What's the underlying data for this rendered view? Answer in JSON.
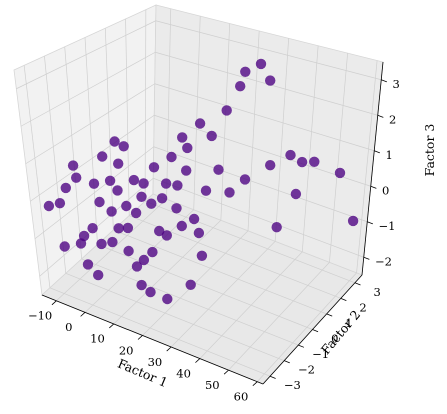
{
  "chart_data": {
    "type": "scatter",
    "projection": "3d",
    "title": "",
    "xlabel": "Factor 1",
    "ylabel": "Factor 2",
    "zlabel": "Factor 3",
    "xlim": [
      -15,
      62
    ],
    "ylim": [
      -3.5,
      3.5
    ],
    "zlim": [
      -2.5,
      3.5
    ],
    "xticks": [
      -10,
      0,
      10,
      20,
      30,
      40,
      50,
      60
    ],
    "yticks": [
      -3,
      -2,
      -1,
      0,
      1,
      2,
      3
    ],
    "zticks": [
      -2,
      -1,
      0,
      1,
      2,
      3
    ],
    "grid": true,
    "point_color": "#4b0082",
    "point_alpha": 0.78,
    "series": [
      {
        "points": [
          [
            -12.0,
            -3.0,
            -0.2
          ],
          [
            -8.0,
            -3.0,
            0.0
          ],
          [
            -6.0,
            -3.3,
            -1.0
          ],
          [
            -4.0,
            -3.2,
            0.6
          ],
          [
            -2.0,
            -3.0,
            1.2
          ],
          [
            0.0,
            -3.2,
            1.0
          ],
          [
            -2.0,
            -3.0,
            -0.9
          ],
          [
            0.0,
            -3.1,
            -0.6
          ],
          [
            2.0,
            -2.9,
            -0.4
          ],
          [
            2.0,
            -2.6,
            0.7
          ],
          [
            4.0,
            -2.7,
            0.3
          ],
          [
            6.0,
            -2.4,
            0.0
          ],
          [
            6.0,
            -2.5,
            -0.8
          ],
          [
            8.0,
            -2.3,
            0.6
          ],
          [
            8.0,
            -2.4,
            -0.4
          ],
          [
            10.0,
            -2.2,
            0.2
          ],
          [
            10.0,
            -2.2,
            -0.4
          ],
          [
            12.0,
            -2.0,
            0.0
          ],
          [
            4.0,
            -2.8,
            -0.8
          ],
          [
            5.0,
            -2.5,
            1.5
          ],
          [
            7.0,
            -2.0,
            1.2
          ],
          [
            9.0,
            -2.1,
            -1.1
          ],
          [
            11.0,
            -2.0,
            -1.5
          ],
          [
            13.0,
            -1.9,
            -1.3
          ],
          [
            3.0,
            -3.0,
            -1.6
          ],
          [
            1.0,
            -3.2,
            -1.3
          ],
          [
            15.0,
            -1.6,
            0.2
          ],
          [
            14.0,
            -1.8,
            0.8
          ],
          [
            16.0,
            -1.4,
            -0.6
          ],
          [
            18.0,
            -1.2,
            0.7
          ],
          [
            19.0,
            -1.0,
            1.4
          ],
          [
            21.0,
            -0.7,
            1.9
          ],
          [
            22.0,
            -0.6,
            1.6
          ],
          [
            24.0,
            -0.2,
            2.2
          ],
          [
            26.0,
            0.1,
            1.8
          ],
          [
            28.0,
            0.6,
            2.4
          ],
          [
            30.0,
            1.0,
            3.0
          ],
          [
            31.0,
            1.1,
            3.4
          ],
          [
            33.0,
            1.6,
            3.5
          ],
          [
            35.0,
            1.8,
            3.0
          ],
          [
            17.0,
            -1.3,
            0.3
          ],
          [
            20.0,
            -1.0,
            0.0
          ],
          [
            23.0,
            -0.5,
            -0.4
          ],
          [
            25.0,
            -0.1,
            0.3
          ],
          [
            27.0,
            0.3,
            0.8
          ],
          [
            29.0,
            0.6,
            0.1
          ],
          [
            32.0,
            1.0,
            0.4
          ],
          [
            12.0,
            -2.0,
            0.9
          ],
          [
            13.0,
            -1.8,
            0.4
          ],
          [
            15.0,
            -1.7,
            -1.1
          ],
          [
            18.0,
            -1.3,
            -0.7
          ],
          [
            21.0,
            -0.9,
            -0.5
          ],
          [
            24.0,
            -0.4,
            -0.8
          ],
          [
            22.0,
            -0.7,
            1.0
          ],
          [
            20.0,
            -0.9,
            0.6
          ],
          [
            16.0,
            -1.5,
            1.2
          ],
          [
            10.0,
            -2.1,
            1.8
          ],
          [
            9.0,
            -2.4,
            2.0
          ],
          [
            7.0,
            -2.5,
            0.9
          ],
          [
            36.0,
            1.8,
            0.6
          ],
          [
            40.0,
            2.3,
            0.8
          ],
          [
            43.0,
            2.5,
            0.6
          ],
          [
            42.0,
            2.4,
            -0.3
          ],
          [
            45.0,
            2.9,
            0.5
          ],
          [
            52.0,
            3.3,
            0.2
          ],
          [
            58.0,
            3.3,
            -1.0
          ],
          [
            38.0,
            2.0,
            -1.2
          ],
          [
            26.0,
            -0.6,
            -1.3
          ],
          [
            28.0,
            -1.7,
            -1.6
          ],
          [
            27.0,
            -3.0,
            -1.5
          ],
          [
            14.0,
            -2.3,
            -1.8
          ],
          [
            17.0,
            -2.3,
            -1.9
          ]
        ]
      }
    ]
  }
}
